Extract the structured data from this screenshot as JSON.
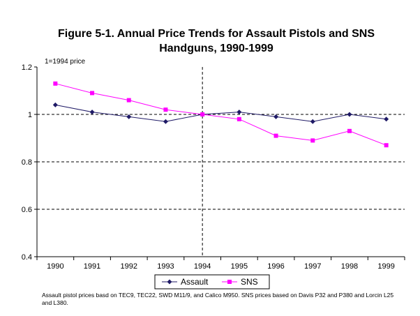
{
  "chart_data": {
    "type": "line",
    "title_lines": [
      "Figure 5-1. Annual Price Trends for Assault Pistols and SNS",
      "Handguns, 1990-1999"
    ],
    "unit_label": "1=1994 price",
    "categories": [
      "1990",
      "1991",
      "1992",
      "1993",
      "1994",
      "1995",
      "1996",
      "1997",
      "1998",
      "1999"
    ],
    "yticks": [
      "0.4",
      "0.6",
      "0.8",
      "1",
      "1.2"
    ],
    "ylim": [
      0.4,
      1.2
    ],
    "grid": "dashed horizontal lines at 0.8 and 1, dashed vertical line at 1994",
    "reference_line_category": "1994",
    "legend_position": "bottom",
    "series": [
      {
        "name": "Assault",
        "color": "#1F1A66",
        "marker": "diamond",
        "values": [
          1.04,
          1.01,
          0.99,
          0.97,
          1.0,
          1.01,
          0.99,
          0.97,
          1.0,
          0.98
        ]
      },
      {
        "name": "SNS",
        "color": "#FF00FF",
        "marker": "square",
        "values": [
          1.13,
          1.09,
          1.06,
          1.02,
          1.0,
          0.98,
          0.91,
          0.89,
          0.93,
          0.87
        ]
      }
    ]
  },
  "footnote": "Assault pistol prices basd on TEC9, TEC22, SWD M11/9, and Calico M950.  SNS prices based on Davis P32 and P380 and Lorcin L25 and L380."
}
